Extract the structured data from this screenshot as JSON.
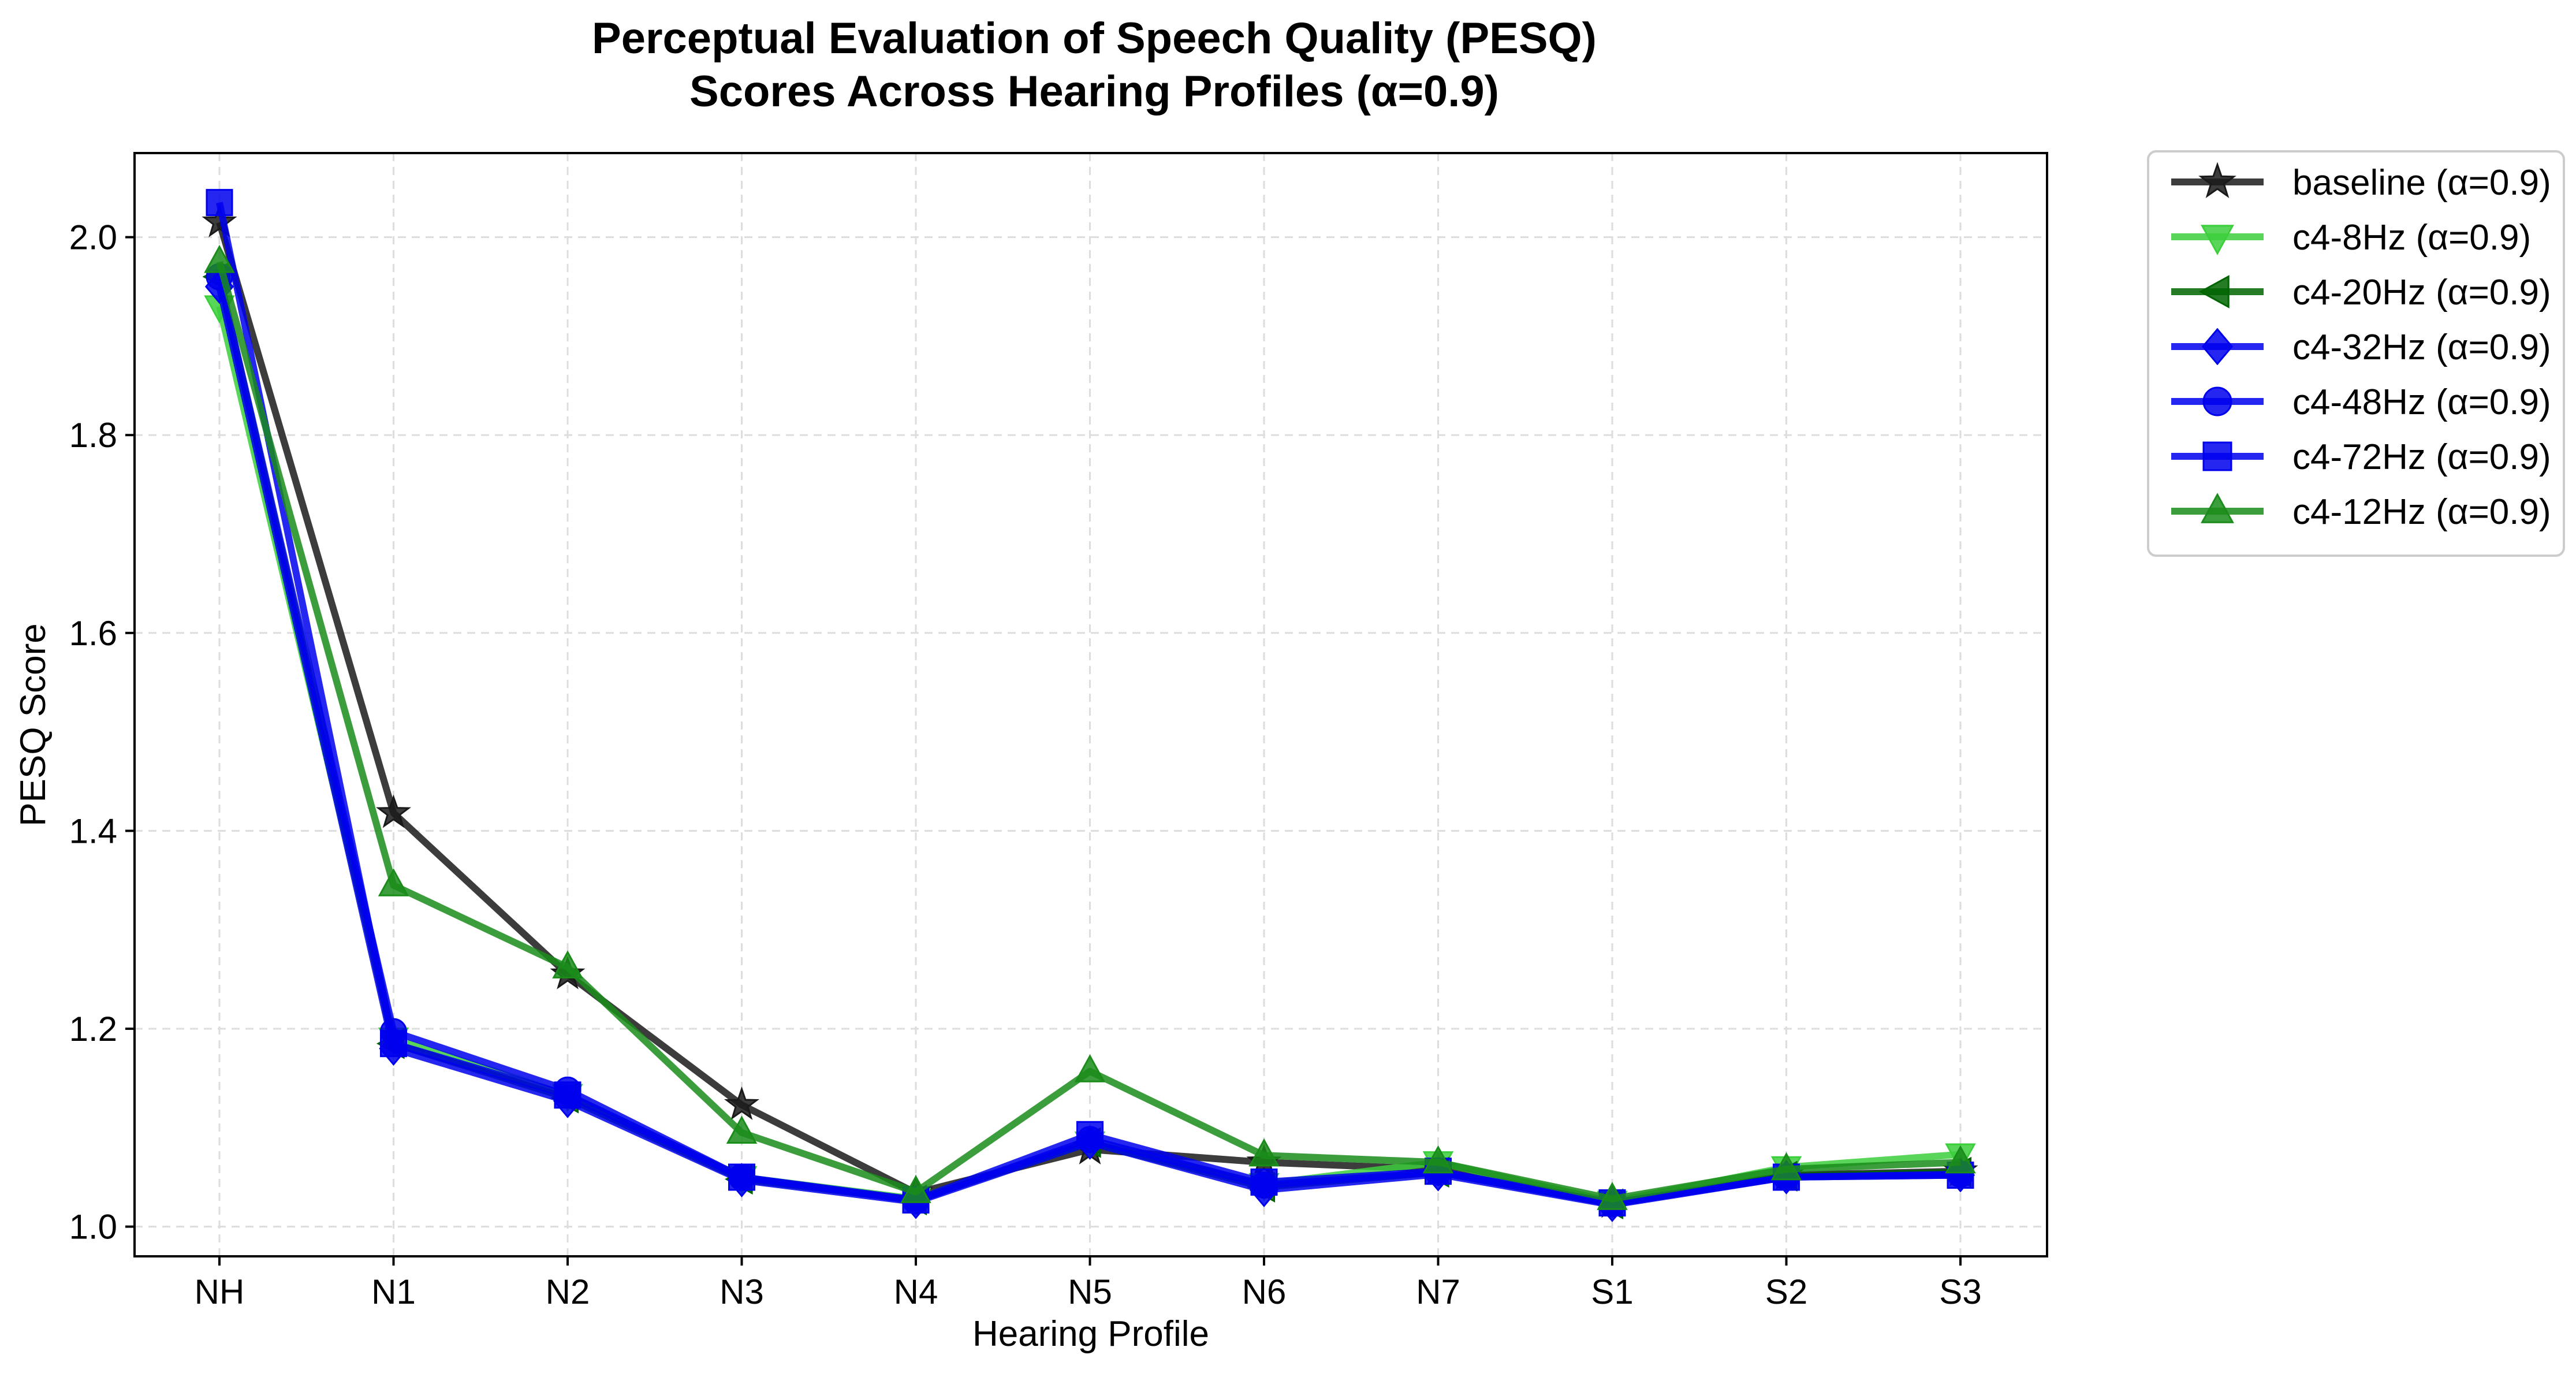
{
  "chart_data": {
    "type": "line",
    "title": "Perceptual Evaluation of Speech Quality (PESQ)",
    "subtitle": "Scores Across Hearing Profiles (α=0.9)",
    "xlabel": "Hearing Profile",
    "ylabel": "PESQ Score",
    "categories": [
      "NH",
      "N1",
      "N2",
      "N3",
      "N4",
      "N5",
      "N6",
      "N7",
      "S1",
      "S2",
      "S3"
    ],
    "ylim": [
      0.97,
      2.085
    ],
    "yticks": [
      "1.0",
      "1.2",
      "1.4",
      "1.6",
      "1.8",
      "2.0"
    ],
    "grid": true,
    "legend_position": "outside-right",
    "series": [
      {
        "name": "baseline (α=0.9)",
        "color": "#1a1a1a",
        "marker": "star",
        "values": [
          2.015,
          1.418,
          1.255,
          1.123,
          1.034,
          1.078,
          1.065,
          1.058,
          1.024,
          1.052,
          1.056
        ]
      },
      {
        "name": "c4-8Hz (α=0.9)",
        "color": "#3ccf3c",
        "marker": "triangle-down",
        "values": [
          1.93,
          1.19,
          1.133,
          1.05,
          1.028,
          1.085,
          1.043,
          1.065,
          1.025,
          1.06,
          1.073
        ]
      },
      {
        "name": "c4-20Hz (α=0.9)",
        "color": "#006400",
        "marker": "triangle-left",
        "values": [
          1.96,
          1.185,
          1.13,
          1.048,
          1.027,
          1.085,
          1.04,
          1.055,
          1.023,
          1.051,
          1.055
        ]
      },
      {
        "name": "c4-32Hz (α=0.9)",
        "color": "#0000ee",
        "marker": "diamond",
        "values": [
          1.95,
          1.18,
          1.127,
          1.047,
          1.025,
          1.085,
          1.037,
          1.053,
          1.022,
          1.05,
          1.052
        ]
      },
      {
        "name": "c4-48Hz (α=0.9)",
        "color": "#0000ee",
        "marker": "circle",
        "values": [
          1.96,
          1.197,
          1.138,
          1.05,
          1.026,
          1.088,
          1.042,
          1.055,
          1.023,
          1.05,
          1.053
        ]
      },
      {
        "name": "c4-72Hz (α=0.9)",
        "color": "#0000ee",
        "marker": "square",
        "values": [
          2.035,
          1.185,
          1.133,
          1.05,
          1.027,
          1.093,
          1.045,
          1.056,
          1.024,
          1.05,
          1.052
        ]
      },
      {
        "name": "c4-12Hz (α=0.9)",
        "color": "#1a8c1a",
        "marker": "triangle-up",
        "values": [
          1.975,
          1.345,
          1.262,
          1.095,
          1.035,
          1.157,
          1.072,
          1.065,
          1.028,
          1.058,
          1.065
        ]
      }
    ]
  }
}
